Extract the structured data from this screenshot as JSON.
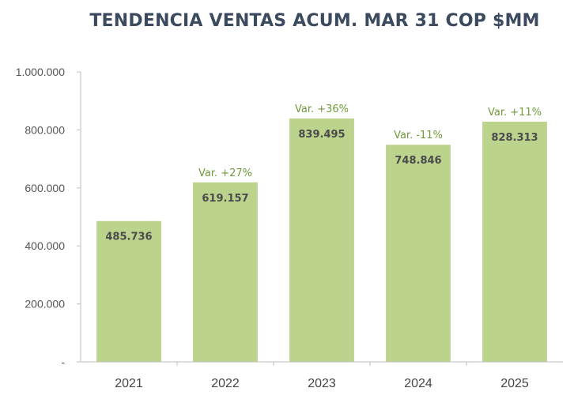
{
  "chart_data": {
    "type": "bar",
    "title": "TENDENCIA VENTAS ACUM. MAR 31 COP $MM",
    "categories": [
      "2021",
      "2022",
      "2023",
      "2024",
      "2025"
    ],
    "values": [
      485736,
      619157,
      839495,
      748846,
      828313
    ],
    "value_labels": [
      "485.736",
      "619.157",
      "839.495",
      "748.846",
      "828.313"
    ],
    "annotations": [
      "",
      "Var. +27%",
      "Var. +36%",
      "Var. -11%",
      "Var. +11%"
    ],
    "y_ticks": [
      0,
      200000,
      400000,
      600000,
      800000,
      1000000
    ],
    "y_tick_labels": [
      "-",
      "200.000",
      "400.000",
      "600.000",
      "800.000",
      "1.000.000"
    ],
    "ylim": [
      0,
      1000000
    ],
    "grid": false,
    "bar_color": "#bcd38e",
    "annotation_color": "#6f9a3a"
  }
}
